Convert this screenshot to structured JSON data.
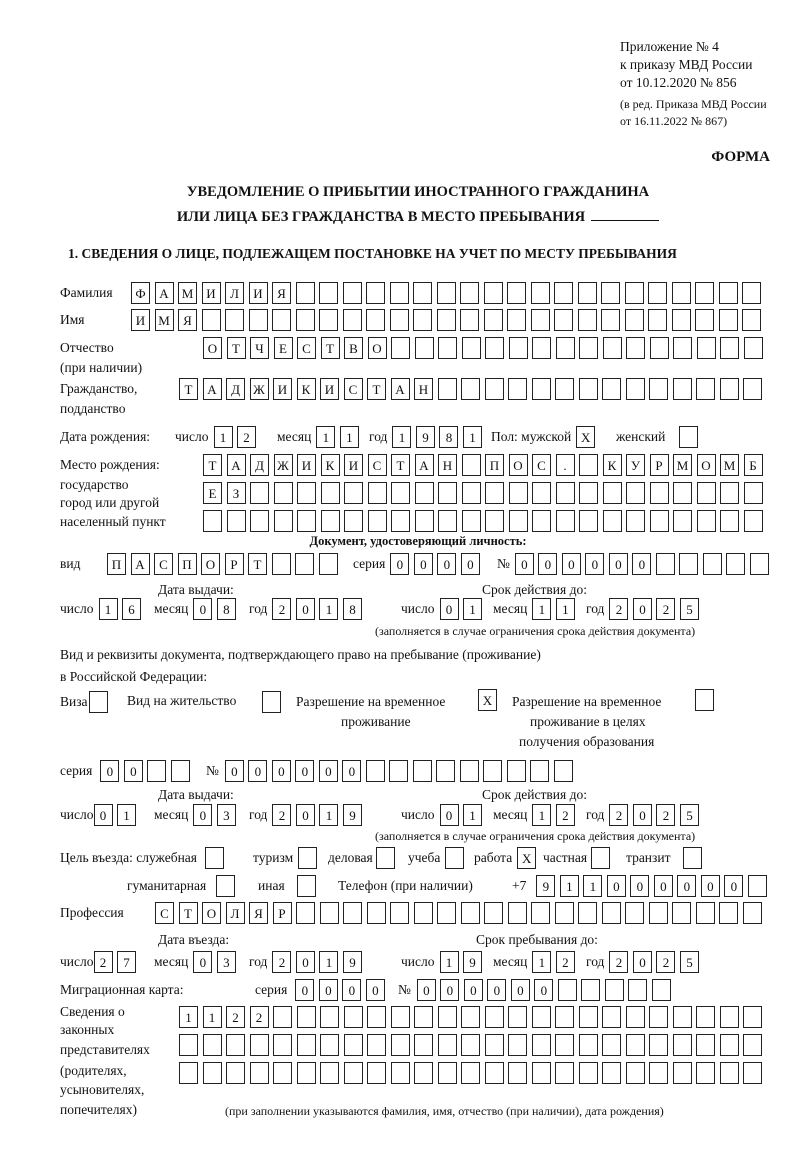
{
  "header": {
    "appendix": [
      "Приложение № 4",
      "к приказу МВД России",
      "от 10.12.2020 № 856"
    ],
    "edition": [
      "(в ред. Приказа МВД России",
      "от 16.11.2022 № 867)"
    ],
    "forma": "ФОРМА",
    "title_line1": "УВЕДОМЛЕНИЕ О ПРИБЫТИИ ИНОСТРАННОГО ГРАЖДАНИНА",
    "title_line2": "ИЛИ ЛИЦА БЕЗ ГРАЖДАНСТВА В МЕСТО ПРЕБЫВАНИЯ"
  },
  "section1_title": "1. СВЕДЕНИЯ О ЛИЦЕ, ПОДЛЕЖАЩЕМ ПОСТАНОВКЕ НА УЧЕТ ПО МЕСТУ ПРЕБЫВАНИЯ",
  "surname": {
    "label": "Фамилия",
    "boxes": [
      "Ф",
      "А",
      "М",
      "И",
      "Л",
      "И",
      "Я",
      "",
      "",
      "",
      "",
      "",
      "",
      "",
      "",
      "",
      "",
      "",
      "",
      "",
      "",
      "",
      "",
      "",
      "",
      "",
      ""
    ]
  },
  "name": {
    "label": "Имя",
    "boxes": [
      "И",
      "М",
      "Я",
      "",
      "",
      "",
      "",
      "",
      "",
      "",
      "",
      "",
      "",
      "",
      "",
      "",
      "",
      "",
      "",
      "",
      "",
      "",
      "",
      "",
      "",
      "",
      ""
    ]
  },
  "patronymic": {
    "label": "Отчество",
    "label2": "(при наличии)",
    "boxes": [
      "О",
      "Т",
      "Ч",
      "Е",
      "С",
      "Т",
      "В",
      "О",
      "",
      "",
      "",
      "",
      "",
      "",
      "",
      "",
      "",
      "",
      "",
      "",
      "",
      "",
      "",
      ""
    ]
  },
  "citizenship": {
    "label": "Гражданство,",
    "label2": "подданство",
    "boxes": [
      "Т",
      "А",
      "Д",
      "Ж",
      "И",
      "К",
      "И",
      "С",
      "Т",
      "А",
      "Н",
      "",
      "",
      "",
      "",
      "",
      "",
      "",
      "",
      "",
      "",
      "",
      "",
      "",
      ""
    ]
  },
  "birth_date": {
    "label": "Дата рождения:",
    "day_label": "число",
    "day": [
      "1",
      "2"
    ],
    "month_label": "месяц",
    "month": [
      "1",
      "1"
    ],
    "year_label": "год",
    "year": [
      "1",
      "9",
      "8",
      "1"
    ],
    "sex_label": "Пол: мужской",
    "male": [
      "X"
    ],
    "female_label": "женский",
    "female": [
      ""
    ]
  },
  "birth_place": {
    "labels": [
      "Место рождения:",
      "государство",
      "город или другой",
      "населенный пункт"
    ],
    "row1": [
      "Т",
      "А",
      "Д",
      "Ж",
      "И",
      "К",
      "И",
      "С",
      "Т",
      "А",
      "Н",
      "",
      "П",
      "О",
      "С",
      ".",
      "",
      "К",
      "У",
      "Р",
      "М",
      "О",
      "М",
      "Б"
    ],
    "row2": [
      "Е",
      "З",
      "",
      "",
      "",
      "",
      "",
      "",
      "",
      "",
      "",
      "",
      "",
      "",
      "",
      "",
      "",
      "",
      "",
      "",
      "",
      "",
      "",
      ""
    ],
    "row3": [
      "",
      "",
      "",
      "",
      "",
      "",
      "",
      "",
      "",
      "",
      "",
      "",
      "",
      "",
      "",
      "",
      "",
      "",
      "",
      "",
      "",
      "",
      "",
      ""
    ]
  },
  "id_doc": {
    "heading": "Документ, удостоверяющий личность:",
    "kind_label": "вид",
    "kind": [
      "П",
      "А",
      "С",
      "П",
      "О",
      "Р",
      "Т",
      "",
      "",
      ""
    ],
    "series_label": "серия",
    "series": [
      "0",
      "0",
      "0",
      "0"
    ],
    "number_label": "№",
    "number": [
      "0",
      "0",
      "0",
      "0",
      "0",
      "0",
      "",
      "",
      "",
      "",
      ""
    ],
    "issue_label": "Дата выдачи:",
    "valid_label": "Срок действия до:",
    "issue_day": [
      "1",
      "6"
    ],
    "issue_month": [
      "0",
      "8"
    ],
    "issue_year": [
      "2",
      "0",
      "1",
      "8"
    ],
    "valid_day": [
      "0",
      "1"
    ],
    "valid_month": [
      "1",
      "1"
    ],
    "valid_year": [
      "2",
      "0",
      "2",
      "5"
    ],
    "note": "(заполняется в случае ограничения срока действия документа)"
  },
  "labels": {
    "day": "число",
    "month": "месяц",
    "year": "год"
  },
  "stay_doc": {
    "line1": "Вид и реквизиты документа, подтверждающего право на пребывание (проживание)",
    "line2": "в Российской Федерации:",
    "visa_label": "Виза",
    "visa": [
      ""
    ],
    "residence_label": "Вид на жительство",
    "residence": [
      ""
    ],
    "trp_label1": "Разрешение на временное",
    "trp_label2": "проживание",
    "trp": [
      "X"
    ],
    "trp_edu_label1": "Разрешение на временное",
    "trp_edu_label2": "проживание в целях",
    "trp_edu_label3": "получения образования",
    "trp_edu": [
      ""
    ],
    "series_label": "серия",
    "series": [
      "0",
      "0",
      "",
      ""
    ],
    "number_label": "№",
    "number": [
      "0",
      "0",
      "0",
      "0",
      "0",
      "0",
      "",
      "",
      "",
      "",
      "",
      "",
      "",
      "",
      ""
    ],
    "issue_label": "Дата выдачи:",
    "valid_label": "Срок действия до:",
    "issue_day": [
      "0",
      "1"
    ],
    "issue_month": [
      "0",
      "3"
    ],
    "issue_year": [
      "2",
      "0",
      "1",
      "9"
    ],
    "valid_day": [
      "0",
      "1"
    ],
    "valid_month": [
      "1",
      "2"
    ],
    "valid_year": [
      "2",
      "0",
      "2",
      "5"
    ],
    "note": "(заполняется в случае ограничения срока действия документа)"
  },
  "purpose": {
    "label": "Цель въезда: служебная",
    "official": [
      ""
    ],
    "tourism_label": "туризм",
    "tourism": [
      ""
    ],
    "business_label": "деловая",
    "business": [
      ""
    ],
    "study_label": "учеба",
    "study": [
      ""
    ],
    "work_label": "работа",
    "work": [
      "X"
    ],
    "private_label": "частная",
    "private": [
      ""
    ],
    "transit_label": "транзит",
    "transit": [
      ""
    ],
    "humanitarian_label": "гуманитарная",
    "humanitarian": [
      ""
    ],
    "other_label": "иная",
    "other": [
      ""
    ]
  },
  "phone": {
    "label": "Телефон (при наличии)",
    "prefix": "+7",
    "boxes": [
      "9",
      "1",
      "1",
      "0",
      "0",
      "0",
      "0",
      "0",
      "0",
      ""
    ]
  },
  "profession": {
    "label": "Профессия",
    "boxes": [
      "С",
      "Т",
      "О",
      "Л",
      "Я",
      "Р",
      "",
      "",
      "",
      "",
      "",
      "",
      "",
      "",
      "",
      "",
      "",
      "",
      "",
      "",
      "",
      "",
      "",
      "",
      "",
      ""
    ]
  },
  "entry": {
    "entry_label": "Дата въезда:",
    "stay_label": "Срок пребывания до:",
    "entry_day": [
      "2",
      "7"
    ],
    "entry_month": [
      "0",
      "3"
    ],
    "entry_year": [
      "2",
      "0",
      "1",
      "9"
    ],
    "stay_day": [
      "1",
      "9"
    ],
    "stay_month": [
      "1",
      "2"
    ],
    "stay_year": [
      "2",
      "0",
      "2",
      "5"
    ]
  },
  "migration_card": {
    "label": "Миграционная карта:",
    "series_label": "серия",
    "series": [
      "0",
      "0",
      "0",
      "0"
    ],
    "number_label": "№",
    "number": [
      "0",
      "0",
      "0",
      "0",
      "0",
      "0",
      "",
      "",
      "",
      "",
      ""
    ]
  },
  "representatives": {
    "labels": [
      "Сведения о",
      "законных",
      "представителях",
      "(родителях,",
      "усыновителях,",
      "попечителях)"
    ],
    "row1": [
      "1",
      "1",
      "2",
      "2",
      "",
      "",
      "",
      "",
      "",
      "",
      "",
      "",
      "",
      "",
      "",
      "",
      "",
      "",
      "",
      "",
      "",
      "",
      "",
      "",
      ""
    ],
    "row2": [
      "",
      "",
      "",
      "",
      "",
      "",
      "",
      "",
      "",
      "",
      "",
      "",
      "",
      "",
      "",
      "",
      "",
      "",
      "",
      "",
      "",
      "",
      "",
      "",
      ""
    ],
    "row3": [
      "",
      "",
      "",
      "",
      "",
      "",
      "",
      "",
      "",
      "",
      "",
      "",
      "",
      "",
      "",
      "",
      "",
      "",
      "",
      "",
      "",
      "",
      "",
      "",
      ""
    ],
    "note": "(при заполнении указываются фамилия, имя, отчество (при наличии), дата рождения)"
  }
}
